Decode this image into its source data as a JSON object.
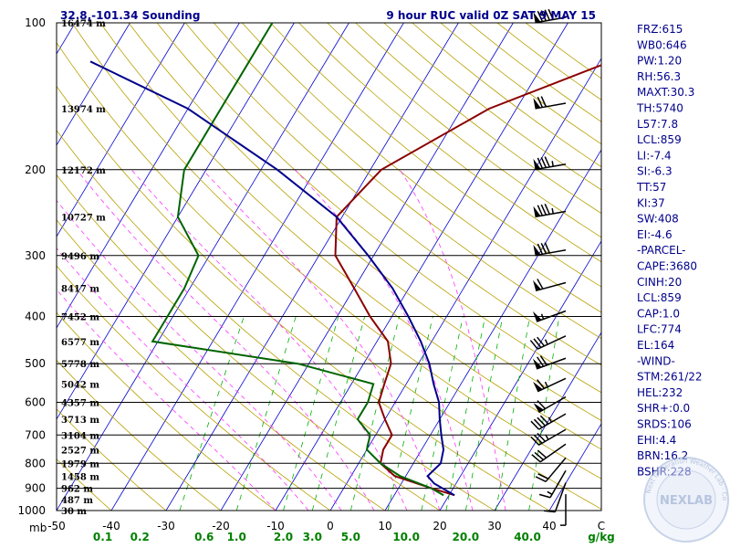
{
  "header": {
    "location": "32.8,-101.34 Sounding",
    "valid": "9 hour RUC valid 0Z SAT  9 MAY 15"
  },
  "axes": {
    "ylabel": "mb",
    "temp_unit": "C",
    "mix_unit": "g/kg"
  },
  "logo": {
    "text": "NEXLAB",
    "ring_text": "Next Generation Weather Lab · College of DuPage"
  },
  "chart_data": {
    "type": "line",
    "pressure_ticks": [
      100,
      200,
      300,
      400,
      500,
      600,
      700,
      800,
      900,
      1000
    ],
    "temp_ticks": [
      -50,
      -40,
      -30,
      -20,
      -10,
      0,
      10,
      20,
      30,
      40
    ],
    "mixing_ratio_ticks": [
      "0.1",
      "0.2",
      "0.6",
      "1.0",
      "2.0",
      "3.0",
      "5.0",
      "10.0",
      "20.0",
      "40.0"
    ],
    "heights": [
      {
        "p": 100,
        "label": "16474 m"
      },
      {
        "p": 150,
        "label": "13974 m"
      },
      {
        "p": 200,
        "label": "12172 m"
      },
      {
        "p": 250,
        "label": "10727 m"
      },
      {
        "p": 300,
        "label": "9496 m"
      },
      {
        "p": 350,
        "label": "8417 m"
      },
      {
        "p": 400,
        "label": "7452 m"
      },
      {
        "p": 450,
        "label": "6577 m"
      },
      {
        "p": 500,
        "label": "5778 m"
      },
      {
        "p": 550,
        "label": "5042 m"
      },
      {
        "p": 600,
        "label": "4357 m"
      },
      {
        "p": 650,
        "label": "3713 m"
      },
      {
        "p": 700,
        "label": "3104 m"
      },
      {
        "p": 750,
        "label": "2527 m"
      },
      {
        "p": 800,
        "label": "1979 m"
      },
      {
        "p": 850,
        "label": "1458 m"
      },
      {
        "p": 900,
        "label": "962 m"
      },
      {
        "p": 950,
        "label": "487 m"
      },
      {
        "p": 1000,
        "label": "30 m"
      }
    ],
    "series": [
      {
        "kind": "temperature",
        "color": "#8b0000",
        "points": [
          [
            100,
            16
          ],
          [
            150,
            -15
          ],
          [
            200,
            -28
          ],
          [
            250,
            -31
          ],
          [
            300,
            -27
          ],
          [
            350,
            -20
          ],
          [
            400,
            -14
          ],
          [
            450,
            -8
          ],
          [
            500,
            -5
          ],
          [
            550,
            -4
          ],
          [
            600,
            -3
          ],
          [
            650,
            0
          ],
          [
            700,
            3
          ],
          [
            750,
            3
          ],
          [
            800,
            4
          ],
          [
            850,
            8
          ],
          [
            900,
            16
          ],
          [
            930,
            21
          ]
        ]
      },
      {
        "kind": "dewpoint",
        "color": "#006400",
        "points": [
          [
            100,
            -64
          ],
          [
            150,
            -64
          ],
          [
            200,
            -64
          ],
          [
            250,
            -60
          ],
          [
            300,
            -52
          ],
          [
            350,
            -51
          ],
          [
            400,
            -51
          ],
          [
            450,
            -51
          ],
          [
            500,
            -22
          ],
          [
            550,
            -6
          ],
          [
            600,
            -5
          ],
          [
            650,
            -5
          ],
          [
            700,
            -1
          ],
          [
            750,
            0
          ],
          [
            800,
            4
          ],
          [
            850,
            9
          ],
          [
            900,
            16
          ],
          [
            930,
            19
          ]
        ]
      },
      {
        "kind": "parcel",
        "color": "#00008b",
        "points": [
          [
            120,
            -93
          ],
          [
            150,
            -70
          ],
          [
            200,
            -47
          ],
          [
            250,
            -31
          ],
          [
            300,
            -21
          ],
          [
            350,
            -13
          ],
          [
            400,
            -7
          ],
          [
            450,
            -2
          ],
          [
            500,
            2
          ],
          [
            550,
            5
          ],
          [
            600,
            8
          ],
          [
            650,
            10
          ],
          [
            700,
            12
          ],
          [
            750,
            14
          ],
          [
            800,
            15
          ],
          [
            850,
            14
          ],
          [
            880,
            16
          ],
          [
            930,
            21
          ]
        ]
      }
    ],
    "winds": [
      {
        "p": 100,
        "dir": 260,
        "spd": 90
      },
      {
        "p": 150,
        "dir": 260,
        "spd": 70
      },
      {
        "p": 200,
        "dir": 260,
        "spd": 85
      },
      {
        "p": 250,
        "dir": 260,
        "spd": 85
      },
      {
        "p": 300,
        "dir": 260,
        "spd": 80
      },
      {
        "p": 350,
        "dir": 255,
        "spd": 60
      },
      {
        "p": 400,
        "dir": 250,
        "spd": 55
      },
      {
        "p": 450,
        "dir": 245,
        "spd": 35
      },
      {
        "p": 500,
        "dir": 250,
        "spd": 70
      },
      {
        "p": 550,
        "dir": 245,
        "spd": 65
      },
      {
        "p": 600,
        "dir": 240,
        "spd": 60
      },
      {
        "p": 650,
        "dir": 240,
        "spd": 45
      },
      {
        "p": 700,
        "dir": 240,
        "spd": 35
      },
      {
        "p": 750,
        "dir": 235,
        "spd": 30
      },
      {
        "p": 800,
        "dir": 220,
        "spd": 20
      },
      {
        "p": 850,
        "dir": 210,
        "spd": 15
      },
      {
        "p": 900,
        "dir": 200,
        "spd": 10
      },
      {
        "p": 950,
        "dir": 180,
        "spd": 5
      }
    ]
  },
  "indices": [
    "FRZ:615",
    "WB0:646",
    "PW:1.20",
    "RH:56.3",
    "MAXT:30.3",
    "TH:5740",
    "L57:7.8",
    "LCL:859",
    "LI:-7.4",
    "SI:-6.3",
    "TT:57",
    "KI:37",
    "SW:408",
    "EI:-4.6",
    "-PARCEL-",
    "CAPE:3680",
    "CINH:20",
    "LCL:859",
    "CAP:1.0",
    "LFC:774",
    "EL:164",
    "-WIND-",
    "STM:261/22",
    "HEL:232",
    "SHR+:0.0",
    "SRDS:106",
    "EHI:4.4",
    "BRN:16.2",
    "BSHR:228"
  ],
  "colors": {
    "isobar": "#000000",
    "isotherm": "#0000cd",
    "dry_adiabat": "#b8a000",
    "moist_adiabat": "#ff33ff",
    "mixing_ratio": "#00b000"
  }
}
